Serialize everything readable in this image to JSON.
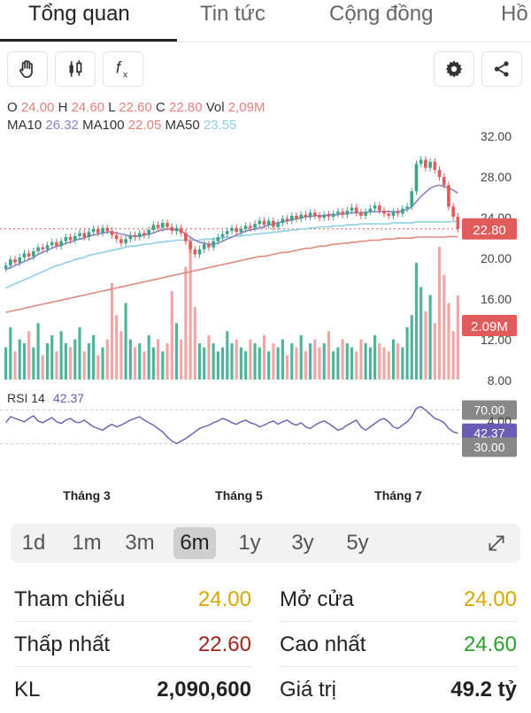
{
  "tabs": [
    {
      "label": "Tổng quan"
    },
    {
      "label": "Tin tức"
    },
    {
      "label": "Cộng đồng"
    },
    {
      "label": "Hồ"
    }
  ],
  "toolbar": {
    "icons": [
      "hand-icon",
      "candlestick-icon",
      "function-icon",
      "gear-icon",
      "share-icon"
    ]
  },
  "quote": {
    "o_label": "O",
    "o": "24.00",
    "h_label": "H",
    "h": "24.60",
    "l_label": "L",
    "l": "22.60",
    "c_label": "C",
    "c": "22.80",
    "vol_label": "Vol",
    "vol": "2,09M",
    "ma10_label": "MA10",
    "ma10": "26.32",
    "ma100_label": "MA100",
    "ma100": "22.05",
    "ma50_label": "MA50",
    "ma50": "23.55"
  },
  "chart_data": {
    "type": "candlestick",
    "y_ticks": [
      "32.00",
      "28.00",
      "24.00",
      "20.00",
      "16.00",
      "12.00",
      "8.00"
    ],
    "ylim": [
      8,
      32
    ],
    "x_ticks": [
      "Tháng 3",
      "Tháng 5",
      "Tháng 7"
    ],
    "last_price_label": "22.80",
    "last_volume_label": "2.09M",
    "rsi": {
      "label": "RSI 14",
      "value": "42.37",
      "upper": "70.00",
      "lower": "30.00",
      "mid_tick": "4.00"
    },
    "close": [
      19.2,
      19.8,
      19.5,
      20.0,
      20.4,
      20.1,
      20.6,
      21.0,
      20.8,
      21.2,
      21.5,
      21.1,
      21.6,
      22.0,
      21.7,
      22.1,
      22.4,
      22.0,
      22.5,
      22.8,
      22.4,
      22.9,
      22.6,
      22.2,
      21.8,
      21.4,
      21.8,
      22.2,
      22.0,
      22.4,
      22.2,
      22.7,
      23.2,
      22.9,
      23.4,
      23.0,
      22.6,
      22.9,
      22.4,
      21.6,
      20.8,
      20.3,
      20.8,
      21.3,
      21.0,
      21.6,
      22.0,
      22.3,
      22.6,
      22.9,
      22.5,
      22.8,
      23.1,
      22.9,
      23.3,
      23.6,
      23.2,
      23.6,
      23.0,
      23.4,
      23.8,
      23.6,
      24.1,
      23.8,
      24.2,
      24.0,
      24.4,
      24.1,
      23.9,
      24.2,
      24.0,
      24.3,
      24.5,
      24.2,
      24.6,
      24.9,
      24.4,
      24.1,
      24.5,
      24.8,
      25.1,
      24.6,
      24.3,
      24.1,
      24.5,
      24.3,
      24.8,
      25.0,
      26.5,
      29.2,
      29.6,
      28.8,
      29.4,
      28.6,
      27.9,
      27.1,
      25.0,
      24.0,
      22.8
    ],
    "volume": [
      0.8,
      1.3,
      0.7,
      1.0,
      0.9,
      1.2,
      0.8,
      1.4,
      0.6,
      0.9,
      1.1,
      0.7,
      1.2,
      0.9,
      0.8,
      1.0,
      1.3,
      0.7,
      0.9,
      1.1,
      0.6,
      0.8,
      1.0,
      2.4,
      1.6,
      1.2,
      1.9,
      1.0,
      0.8,
      0.9,
      0.7,
      1.1,
      0.8,
      1.0,
      0.7,
      0.9,
      2.2,
      1.4,
      1.0,
      2.8,
      3.3,
      1.8,
      0.9,
      0.8,
      1.1,
      0.9,
      0.7,
      0.8,
      1.2,
      0.9,
      1.0,
      0.8,
      0.7,
      1.0,
      0.9,
      0.8,
      1.1,
      0.7,
      0.9,
      0.8,
      1.0,
      0.6,
      0.9,
      0.8,
      1.1,
      0.7,
      0.9,
      1.0,
      0.8,
      0.9,
      1.2,
      0.7,
      0.8,
      1.0,
      0.9,
      0.8,
      0.7,
      1.0,
      0.9,
      0.8,
      1.1,
      0.9,
      0.8,
      0.7,
      1.0,
      0.9,
      0.8,
      1.3,
      1.6,
      2.9,
      2.3,
      1.7,
      2.1,
      1.4,
      3.3,
      2.6,
      1.9,
      1.2,
      2.09
    ],
    "ma10": [
      18.8,
      19.0,
      19.2,
      19.4,
      19.6,
      19.8,
      20.0,
      20.3,
      20.5,
      20.7,
      20.9,
      21.1,
      21.2,
      21.4,
      21.5,
      21.7,
      21.8,
      21.9,
      22.1,
      22.2,
      22.3,
      22.4,
      22.5,
      22.5,
      22.4,
      22.3,
      22.2,
      22.1,
      22.1,
      22.1,
      22.2,
      22.3,
      22.4,
      22.6,
      22.7,
      22.8,
      22.8,
      22.7,
      22.6,
      22.3,
      22.0,
      21.7,
      21.5,
      21.4,
      21.3,
      21.3,
      21.4,
      21.6,
      21.8,
      22.0,
      22.2,
      22.4,
      22.6,
      22.7,
      22.8,
      22.9,
      23.0,
      23.2,
      23.3,
      23.4,
      23.5,
      23.6,
      23.7,
      23.8,
      23.9,
      24.0,
      24.0,
      24.1,
      24.1,
      24.1,
      24.2,
      24.2,
      24.2,
      24.3,
      24.3,
      24.4,
      24.4,
      24.4,
      24.4,
      24.5,
      24.5,
      24.5,
      24.5,
      24.5,
      24.5,
      24.5,
      24.6,
      24.7,
      25.0,
      25.5,
      26.0,
      26.4,
      26.8,
      27.0,
      27.1,
      27.0,
      26.8,
      26.6,
      26.32
    ],
    "ma50": [
      17.0,
      17.2,
      17.4,
      17.6,
      17.8,
      18.0,
      18.2,
      18.4,
      18.6,
      18.8,
      19.0,
      19.2,
      19.3,
      19.5,
      19.6,
      19.8,
      19.9,
      20.0,
      20.2,
      20.3,
      20.4,
      20.5,
      20.6,
      20.7,
      20.8,
      20.9,
      21.0,
      21.1,
      21.1,
      21.2,
      21.3,
      21.3,
      21.4,
      21.5,
      21.5,
      21.6,
      21.6,
      21.7,
      21.7,
      21.7,
      21.7,
      21.7,
      21.7,
      21.8,
      21.8,
      21.8,
      21.9,
      21.9,
      22.0,
      22.0,
      22.1,
      22.1,
      22.2,
      22.2,
      22.3,
      22.3,
      22.4,
      22.4,
      22.5,
      22.5,
      22.6,
      22.6,
      22.7,
      22.7,
      22.8,
      22.8,
      22.9,
      22.9,
      23.0,
      23.0,
      23.0,
      23.1,
      23.1,
      23.1,
      23.2,
      23.2,
      23.2,
      23.3,
      23.3,
      23.3,
      23.3,
      23.3,
      23.3,
      23.3,
      23.4,
      23.4,
      23.4,
      23.4,
      23.4,
      23.5,
      23.5,
      23.5,
      23.5,
      23.5,
      23.5,
      23.5,
      23.5,
      23.55,
      23.55
    ],
    "ma100": [
      14.6,
      14.7,
      14.8,
      14.9,
      15.0,
      15.1,
      15.2,
      15.3,
      15.4,
      15.5,
      15.6,
      15.7,
      15.8,
      15.9,
      16.0,
      16.1,
      16.2,
      16.3,
      16.4,
      16.5,
      16.6,
      16.7,
      16.8,
      16.9,
      17.0,
      17.1,
      17.2,
      17.3,
      17.4,
      17.5,
      17.6,
      17.7,
      17.8,
      17.9,
      18.0,
      18.1,
      18.2,
      18.3,
      18.4,
      18.5,
      18.6,
      18.7,
      18.8,
      18.9,
      19.0,
      19.1,
      19.2,
      19.3,
      19.4,
      19.5,
      19.6,
      19.7,
      19.8,
      19.9,
      20.0,
      20.1,
      20.1,
      20.2,
      20.3,
      20.4,
      20.5,
      20.5,
      20.6,
      20.7,
      20.8,
      20.9,
      20.9,
      21.0,
      21.1,
      21.1,
      21.2,
      21.3,
      21.3,
      21.4,
      21.4,
      21.5,
      21.5,
      21.6,
      21.6,
      21.7,
      21.7,
      21.7,
      21.8,
      21.8,
      21.8,
      21.9,
      21.9,
      21.9,
      21.9,
      22.0,
      22.0,
      22.0,
      22.0,
      22.0,
      22.0,
      22.0,
      22.05,
      22.05,
      22.05
    ],
    "rsi_values": [
      55,
      62,
      60,
      58,
      56,
      60,
      63,
      57,
      55,
      58,
      61,
      56,
      54,
      58,
      60,
      56,
      55,
      58,
      54,
      50,
      48,
      46,
      50,
      53,
      50,
      52,
      55,
      58,
      60,
      62,
      58,
      55,
      52,
      48,
      44,
      38,
      33,
      30,
      33,
      36,
      40,
      44,
      48,
      50,
      52,
      55,
      57,
      60,
      58,
      55,
      53,
      56,
      58,
      55,
      53,
      50,
      52,
      55,
      57,
      53,
      56,
      58,
      54,
      52,
      55,
      50,
      48,
      52,
      55,
      57,
      54,
      50,
      46,
      48,
      52,
      55,
      58,
      50,
      46,
      50,
      54,
      58,
      60,
      56,
      50,
      48,
      52,
      56,
      62,
      72,
      74,
      70,
      65,
      60,
      58,
      55,
      48,
      44,
      42.37
    ]
  },
  "range": {
    "items": [
      "1d",
      "1m",
      "3m",
      "6m",
      "1y",
      "3y",
      "5y"
    ],
    "active": "6m",
    "expand_icon": "expand-icon"
  },
  "stats": {
    "tham_chieu_label": "Tham chiếu",
    "tham_chieu": "24.00",
    "mo_cua_label": "Mở cửa",
    "mo_cua": "24.00",
    "thap_nhat_label": "Thấp nhất",
    "thap_nhat": "22.60",
    "cao_nhat_label": "Cao nhất",
    "cao_nhat": "24.60",
    "kl_label": "KL",
    "kl": "2,090,600",
    "gia_tri_label": "Giá trị",
    "gia_tri": "49.2 tỷ"
  },
  "colors": {
    "up": "#3fa38c",
    "down": "#e15b5b",
    "vol_up": "#4fb39b",
    "vol_down": "#f0a6a4",
    "ma10": "#8a83c6",
    "ma50": "#8ecfe6",
    "ma100": "#e08a80",
    "rsi": "#6a5bb5",
    "yellow": "#d6a800",
    "dark_red": "#a3241c",
    "green": "#2aa12a"
  }
}
